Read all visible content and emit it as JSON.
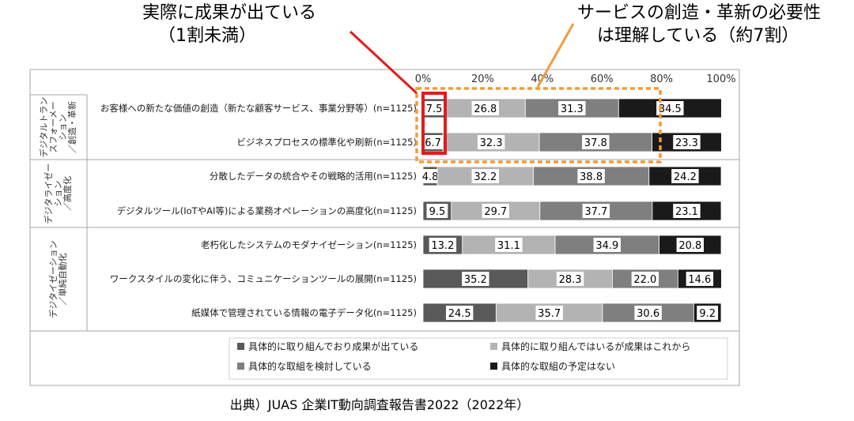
{
  "callouts": {
    "left": [
      "実際に成果が出ている",
      "（1割未満）"
    ],
    "right": [
      "サービスの創造・革新の必要性",
      "は理解している（約7割）"
    ]
  },
  "source": "出典）JUAS 企業IT動向調査報告書2022（2022年）",
  "colors": {
    "outcome": "#595959",
    "working": "#b3b3b3",
    "considering": "#7f7f7f",
    "none": "#1a1a1a",
    "callout_left": "#e31b1b",
    "callout_right": "#f39a3c",
    "frame": "#a6a6a6"
  },
  "chart_data": {
    "type": "bar",
    "orientation": "horizontal-stacked-100",
    "xlim": [
      0,
      100
    ],
    "xticks": [
      "0%",
      "20%",
      "40%",
      "60%",
      "80%",
      "100%"
    ],
    "groups": [
      {
        "label": [
          "デジタルトラン",
          "スフォーメー",
          "ション",
          "／創造・革新"
        ],
        "rows": [
          0,
          1
        ]
      },
      {
        "label": [
          "デジタライゼー",
          "ション",
          "／高度化"
        ],
        "rows": [
          2,
          3
        ]
      },
      {
        "label": [
          "デジタイゼーション",
          "／単純自動化"
        ],
        "rows": [
          4,
          5,
          6
        ]
      }
    ],
    "categories": [
      "お客様への新たな価値の創造（新たな顧客サービス、事業分野等）(n=1125)",
      "ビジネスプロセスの標準化や刷新(n=1125)",
      "分散したデータの統合やその戦略的活用(n=1125)",
      "デジタルツール(IoTやAI等)による業務オペレーションの高度化(n=1125)",
      "老朽化したシステムのモダナイゼーション(n=1125)",
      "ワークスタイルの変化に伴う、コミュニケーションツールの展開(n=1125)",
      "紙媒体で管理されている情報の電子データ化(n=1125)"
    ],
    "series": [
      {
        "name": "具体的に取り組んでおり成果が出ている",
        "values": [
          7.5,
          6.7,
          4.8,
          9.5,
          13.2,
          35.2,
          24.5
        ]
      },
      {
        "name": "具体的に取り組んではいるが成果はこれから",
        "values": [
          26.8,
          32.3,
          32.2,
          29.7,
          31.1,
          28.3,
          35.7
        ]
      },
      {
        "name": "具体的な取組を検討している",
        "values": [
          31.3,
          37.8,
          38.8,
          37.7,
          34.9,
          22.0,
          30.6
        ]
      },
      {
        "name": "具体的な取組の予定はない",
        "values": [
          34.5,
          23.3,
          24.2,
          23.1,
          20.8,
          14.6,
          9.2
        ]
      }
    ],
    "value_labels": [
      [
        "7.5",
        "26.8",
        "31.3",
        "34.5"
      ],
      [
        "6.7",
        "32.3",
        "37.8",
        "23.3"
      ],
      [
        "4.8",
        "32.2",
        "38.8",
        "24.2"
      ],
      [
        "9.5",
        "29.7",
        "37.7",
        "23.1"
      ],
      [
        "13.2",
        "31.1",
        "34.9",
        "20.8"
      ],
      [
        "35.2",
        "28.3",
        "22.0",
        "14.6"
      ],
      [
        "24.5",
        "35.7",
        "30.6",
        "9.2"
      ]
    ],
    "legend_position": "bottom",
    "grid": false
  }
}
